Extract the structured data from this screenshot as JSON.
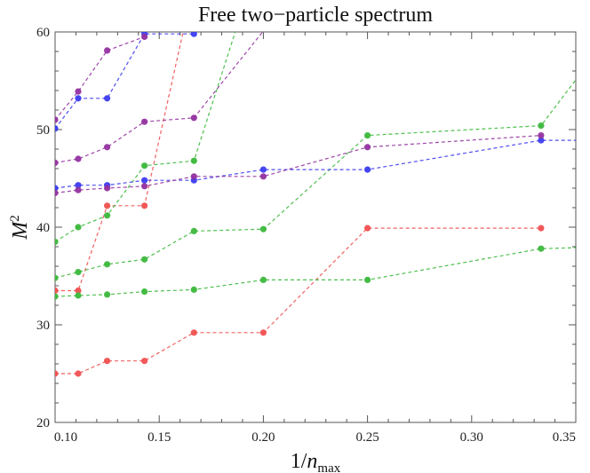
{
  "chart_data": {
    "type": "line",
    "title": "Free two−particle spectrum",
    "xlabel": {
      "base": "1/",
      "var": "n",
      "sub": "max"
    },
    "ylabel": {
      "base": "M",
      "sup": "2"
    },
    "xlim": [
      0.1,
      0.35
    ],
    "ylim": [
      20,
      60
    ],
    "xticks": [
      "0.10",
      "0.15",
      "0.20",
      "0.25",
      "0.30",
      "0.35"
    ],
    "xtick_values": [
      0.1,
      0.15,
      0.2,
      0.25,
      0.3,
      0.35
    ],
    "xtick_minor_step": 0.01,
    "yticks": [
      "20",
      "30",
      "40",
      "50",
      "60"
    ],
    "ytick_values": [
      20,
      30,
      40,
      50,
      60
    ],
    "ytick_minor_step": 2,
    "grid": false,
    "line_style": "dashed",
    "colors": {
      "red": "#f05050",
      "green": "#3cb83c",
      "blue": "#3c3cf0",
      "purple": "#9432a0"
    },
    "series": [
      {
        "color": "red",
        "x": [
          0.1,
          0.1111,
          0.125,
          0.1429,
          0.1667,
          0.2,
          0.25,
          0.3333
        ],
        "y": [
          25.0,
          25.0,
          26.3,
          26.3,
          29.2,
          29.2,
          39.9,
          39.9
        ]
      },
      {
        "color": "red",
        "x": [
          0.1,
          0.1111,
          0.125,
          0.1429,
          0.1667
        ],
        "y": [
          33.5,
          33.5,
          42.2,
          42.2,
          65.0
        ]
      },
      {
        "color": "green",
        "x": [
          0.1,
          0.1111,
          0.125,
          0.1429,
          0.1667,
          0.2,
          0.25,
          0.3333,
          0.35
        ],
        "y": [
          32.9,
          33.0,
          33.1,
          33.4,
          33.6,
          34.6,
          34.6,
          37.8,
          37.9
        ]
      },
      {
        "color": "green",
        "x": [
          0.1,
          0.1111,
          0.125,
          0.1429,
          0.1667,
          0.2,
          0.25,
          0.3333,
          0.35
        ],
        "y": [
          34.8,
          35.4,
          36.2,
          36.7,
          39.6,
          39.8,
          49.4,
          50.4,
          55.1
        ]
      },
      {
        "color": "green",
        "x": [
          0.1,
          0.1111,
          0.125,
          0.1429,
          0.1667,
          0.2
        ],
        "y": [
          38.5,
          40.0,
          41.2,
          46.3,
          46.8,
          69.0
        ]
      },
      {
        "color": "blue",
        "x": [
          0.1,
          0.1111,
          0.125,
          0.1429,
          0.1667,
          0.2,
          0.25,
          0.3333,
          0.35
        ],
        "y": [
          44.0,
          44.3,
          44.3,
          44.8,
          44.8,
          45.9,
          45.9,
          48.9,
          48.9
        ]
      },
      {
        "color": "blue",
        "x": [
          0.1,
          0.1111,
          0.125,
          0.1429,
          0.1667
        ],
        "y": [
          50.1,
          53.2,
          53.2,
          59.8,
          59.8
        ]
      },
      {
        "color": "purple",
        "x": [
          0.1,
          0.1111,
          0.125,
          0.1429,
          0.1667,
          0.2,
          0.25,
          0.3333
        ],
        "y": [
          43.5,
          43.8,
          44.0,
          44.2,
          45.2,
          45.2,
          48.2,
          49.4
        ]
      },
      {
        "color": "purple",
        "x": [
          0.1,
          0.1111,
          0.125,
          0.1429,
          0.1667,
          0.2
        ],
        "y": [
          46.6,
          47.0,
          48.2,
          50.8,
          51.2,
          60.1
        ]
      },
      {
        "color": "purple",
        "x": [
          0.1,
          0.1111,
          0.125,
          0.1429
        ],
        "y": [
          51.0,
          53.9,
          58.1,
          59.5
        ]
      }
    ]
  }
}
